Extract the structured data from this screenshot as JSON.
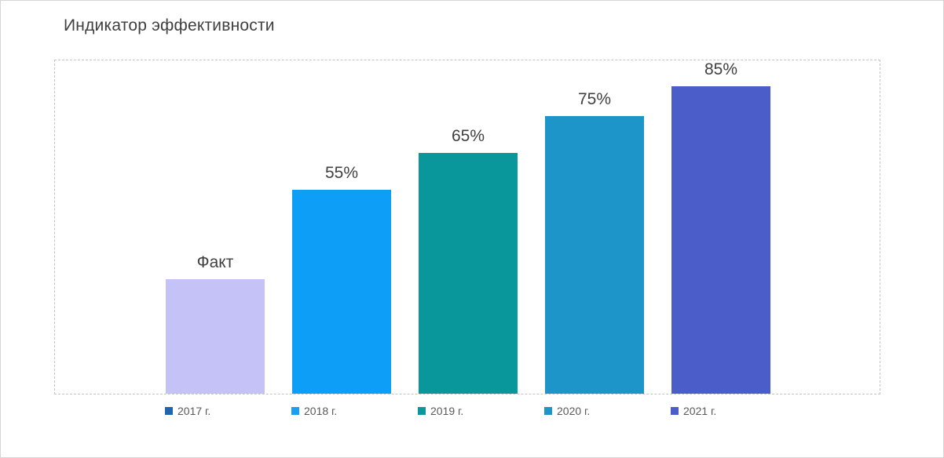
{
  "chart_data": {
    "type": "bar",
    "title": "Индикатор эффективности",
    "categories": [
      "2017 г.",
      "2018 г.",
      "2019 г.",
      "2020 г.",
      "2021 г."
    ],
    "values": [
      31,
      55,
      65,
      75,
      85
    ],
    "bar_labels": [
      "Факт",
      "55%",
      "65%",
      "75%",
      "85%"
    ],
    "bar_colors": [
      "#c4c2f6",
      "#0d9ff7",
      "#0a979c",
      "#1e95c8",
      "#4a5dc8"
    ],
    "legend_colors": [
      "#1f64ac",
      "#199ff2",
      "#0a979c",
      "#1e95c8",
      "#4a5dc8"
    ],
    "xlabel": "",
    "ylabel": "",
    "ylim": [
      0,
      90
    ],
    "grid": false,
    "axis_labels_visible": false,
    "legend_position": "bottom",
    "plot_border_style": "dashed"
  }
}
